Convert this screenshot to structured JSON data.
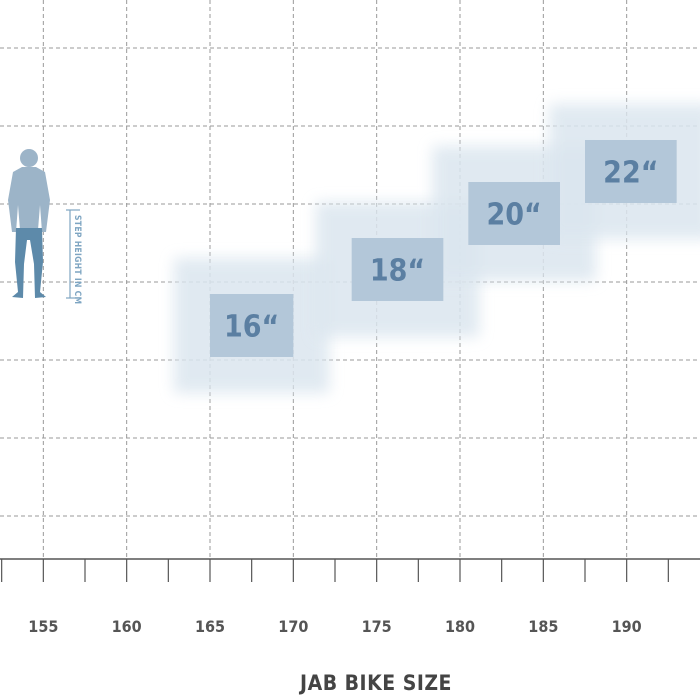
{
  "chart_data": {
    "type": "other",
    "xlabel": "JAB BIKE SIZE",
    "xlim": [
      152.4,
      194.4
    ],
    "xticks": [
      155,
      160,
      165,
      170,
      175,
      180,
      185,
      190
    ],
    "y_label_vertical": "STEP HEIGHT IN CM",
    "y_grid_levels": 7,
    "sizes": [
      {
        "label": "16“",
        "x_range": [
          165,
          170
        ],
        "y_range": [
          0.51,
          0.42
        ],
        "step": 0
      },
      {
        "label": "18“",
        "x_range": [
          173.5,
          179
        ],
        "y_range": [
          0.43,
          0.34
        ],
        "step": 1
      },
      {
        "label": "20“",
        "x_range": [
          180.5,
          186
        ],
        "y_range": [
          0.35,
          0.26
        ],
        "step": 2
      },
      {
        "label": "22“",
        "x_range": [
          187.5,
          193
        ],
        "y_range": [
          0.29,
          0.2
        ],
        "step": 3
      }
    ],
    "colors": {
      "box": "#b3c7d9",
      "glow": "#dbe6ef",
      "label": "#5b7fa2",
      "figure_body": "#9cb4c8",
      "figure_legs": "#5d8aaa",
      "grid": "#9a9a9a"
    }
  }
}
